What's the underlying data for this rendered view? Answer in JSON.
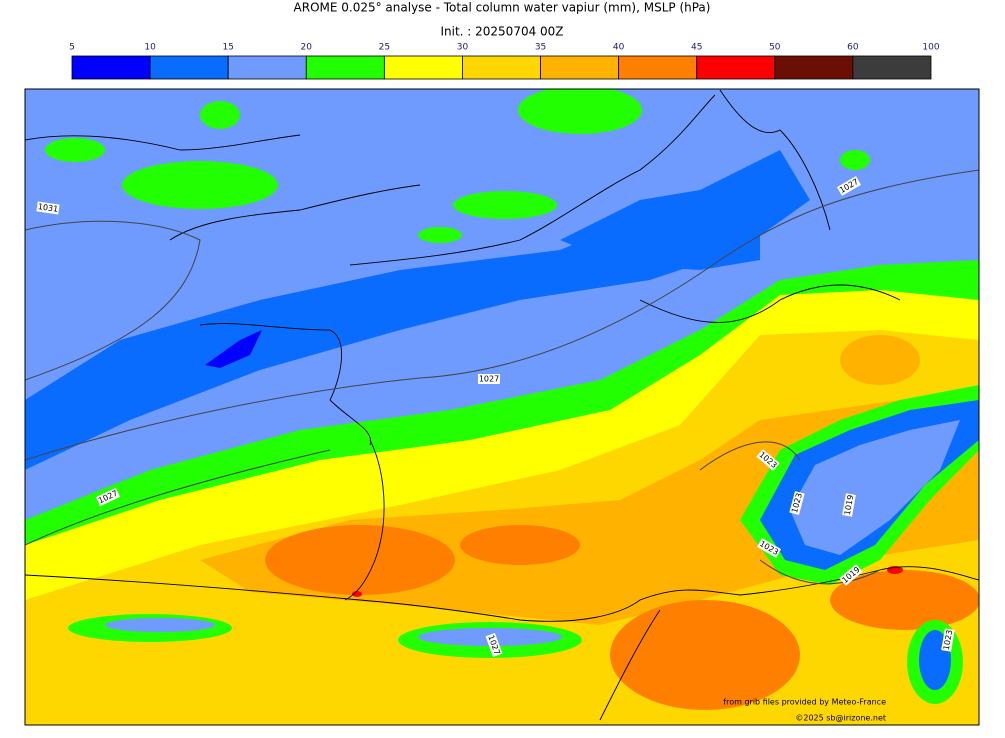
{
  "header": {
    "title": "AROME 0.025° analyse - Total column water vapiur (mm), MSLP (hPa)",
    "init": "Init. : 20250704 00Z"
  },
  "colorbar": {
    "ticks": [
      5,
      10,
      15,
      20,
      25,
      30,
      35,
      40,
      45,
      50,
      60,
      100
    ],
    "colors": [
      "#0000ff",
      "#0a6cff",
      "#6f9bff",
      "#22ff00",
      "#ffff00",
      "#ffd700",
      "#ffb300",
      "#ff8000",
      "#ff0000",
      "#6b0f05",
      "#3c3c3c"
    ]
  },
  "isobar_labels": [
    1031,
    1027,
    1027,
    1027,
    1023,
    1023,
    1019,
    1023,
    1019,
    1027,
    1023
  ],
  "credits": [
    "from grib files provided by Meteo-France",
    "©2025 sb@irizone.net"
  ]
}
